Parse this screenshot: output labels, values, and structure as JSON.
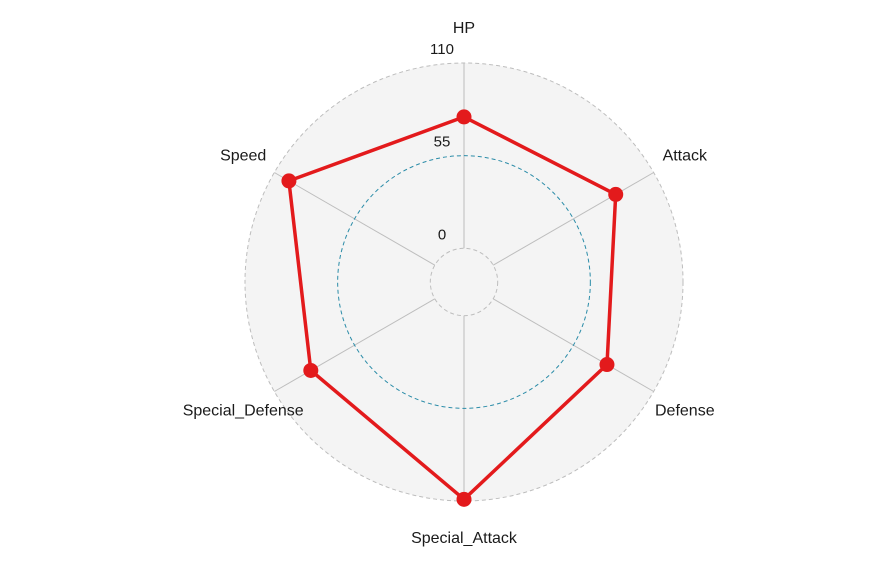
{
  "chart_data": {
    "type": "radar",
    "axes": [
      "HP",
      "Attack",
      "Defense",
      "Special_Attack",
      "Special_Defense",
      "Speed"
    ],
    "series": [
      {
        "values": [
          78,
          84,
          78,
          109,
          85,
          100
        ]
      }
    ],
    "rlim": [
      -20,
      110
    ],
    "ticks": [
      0,
      55,
      110
    ],
    "tick_labels": [
      "0",
      "55",
      "110"
    ],
    "grid": true,
    "colors": {
      "series": "#e31a1c",
      "panel": "#f4f4f4",
      "outer_ring": "#bdbdbd",
      "mid_ring": "#2b8ca8",
      "inner_ring": "#bdbdbd",
      "spokes": "#bdbdbd"
    }
  }
}
